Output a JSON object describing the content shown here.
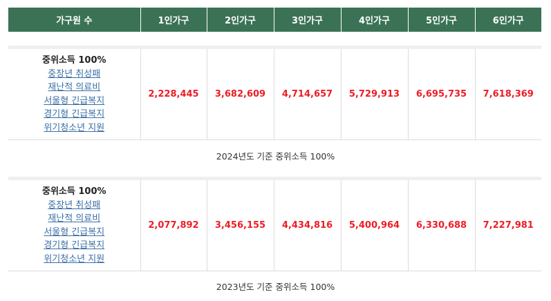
{
  "header": {
    "columns": [
      "가구원 수",
      "1인가구",
      "2인가구",
      "3인가구",
      "4인가구",
      "5인가구",
      "6인가구"
    ]
  },
  "tables": [
    {
      "label_title": "중위소득 100%",
      "links": [
        "중장년 취성패",
        "재난적 의료비",
        "서울형 긴급복지",
        "경기형 긴급복지",
        "위기청소년 지원"
      ],
      "values": [
        "2,228,445",
        "3,682,609",
        "4,714,657",
        "5,729,913",
        "6,695,735",
        "7,618,369"
      ],
      "caption": "2024년도 기준 중위소득 100%"
    },
    {
      "label_title": "중위소득 100%",
      "links": [
        "중장년 취성패",
        "재난적 의료비",
        "서울형 긴급복지",
        "경기형 긴급복지",
        "위기청소년 지원"
      ],
      "values": [
        "2,077,892",
        "3,456,155",
        "4,434,816",
        "5,400,964",
        "6,330,688",
        "7,227,981"
      ],
      "caption": "2023년도 기준 중위소득 100%"
    }
  ],
  "colors": {
    "header_bg": "#3b7255",
    "value": "#ee1c25",
    "link": "#3a6ea5"
  }
}
